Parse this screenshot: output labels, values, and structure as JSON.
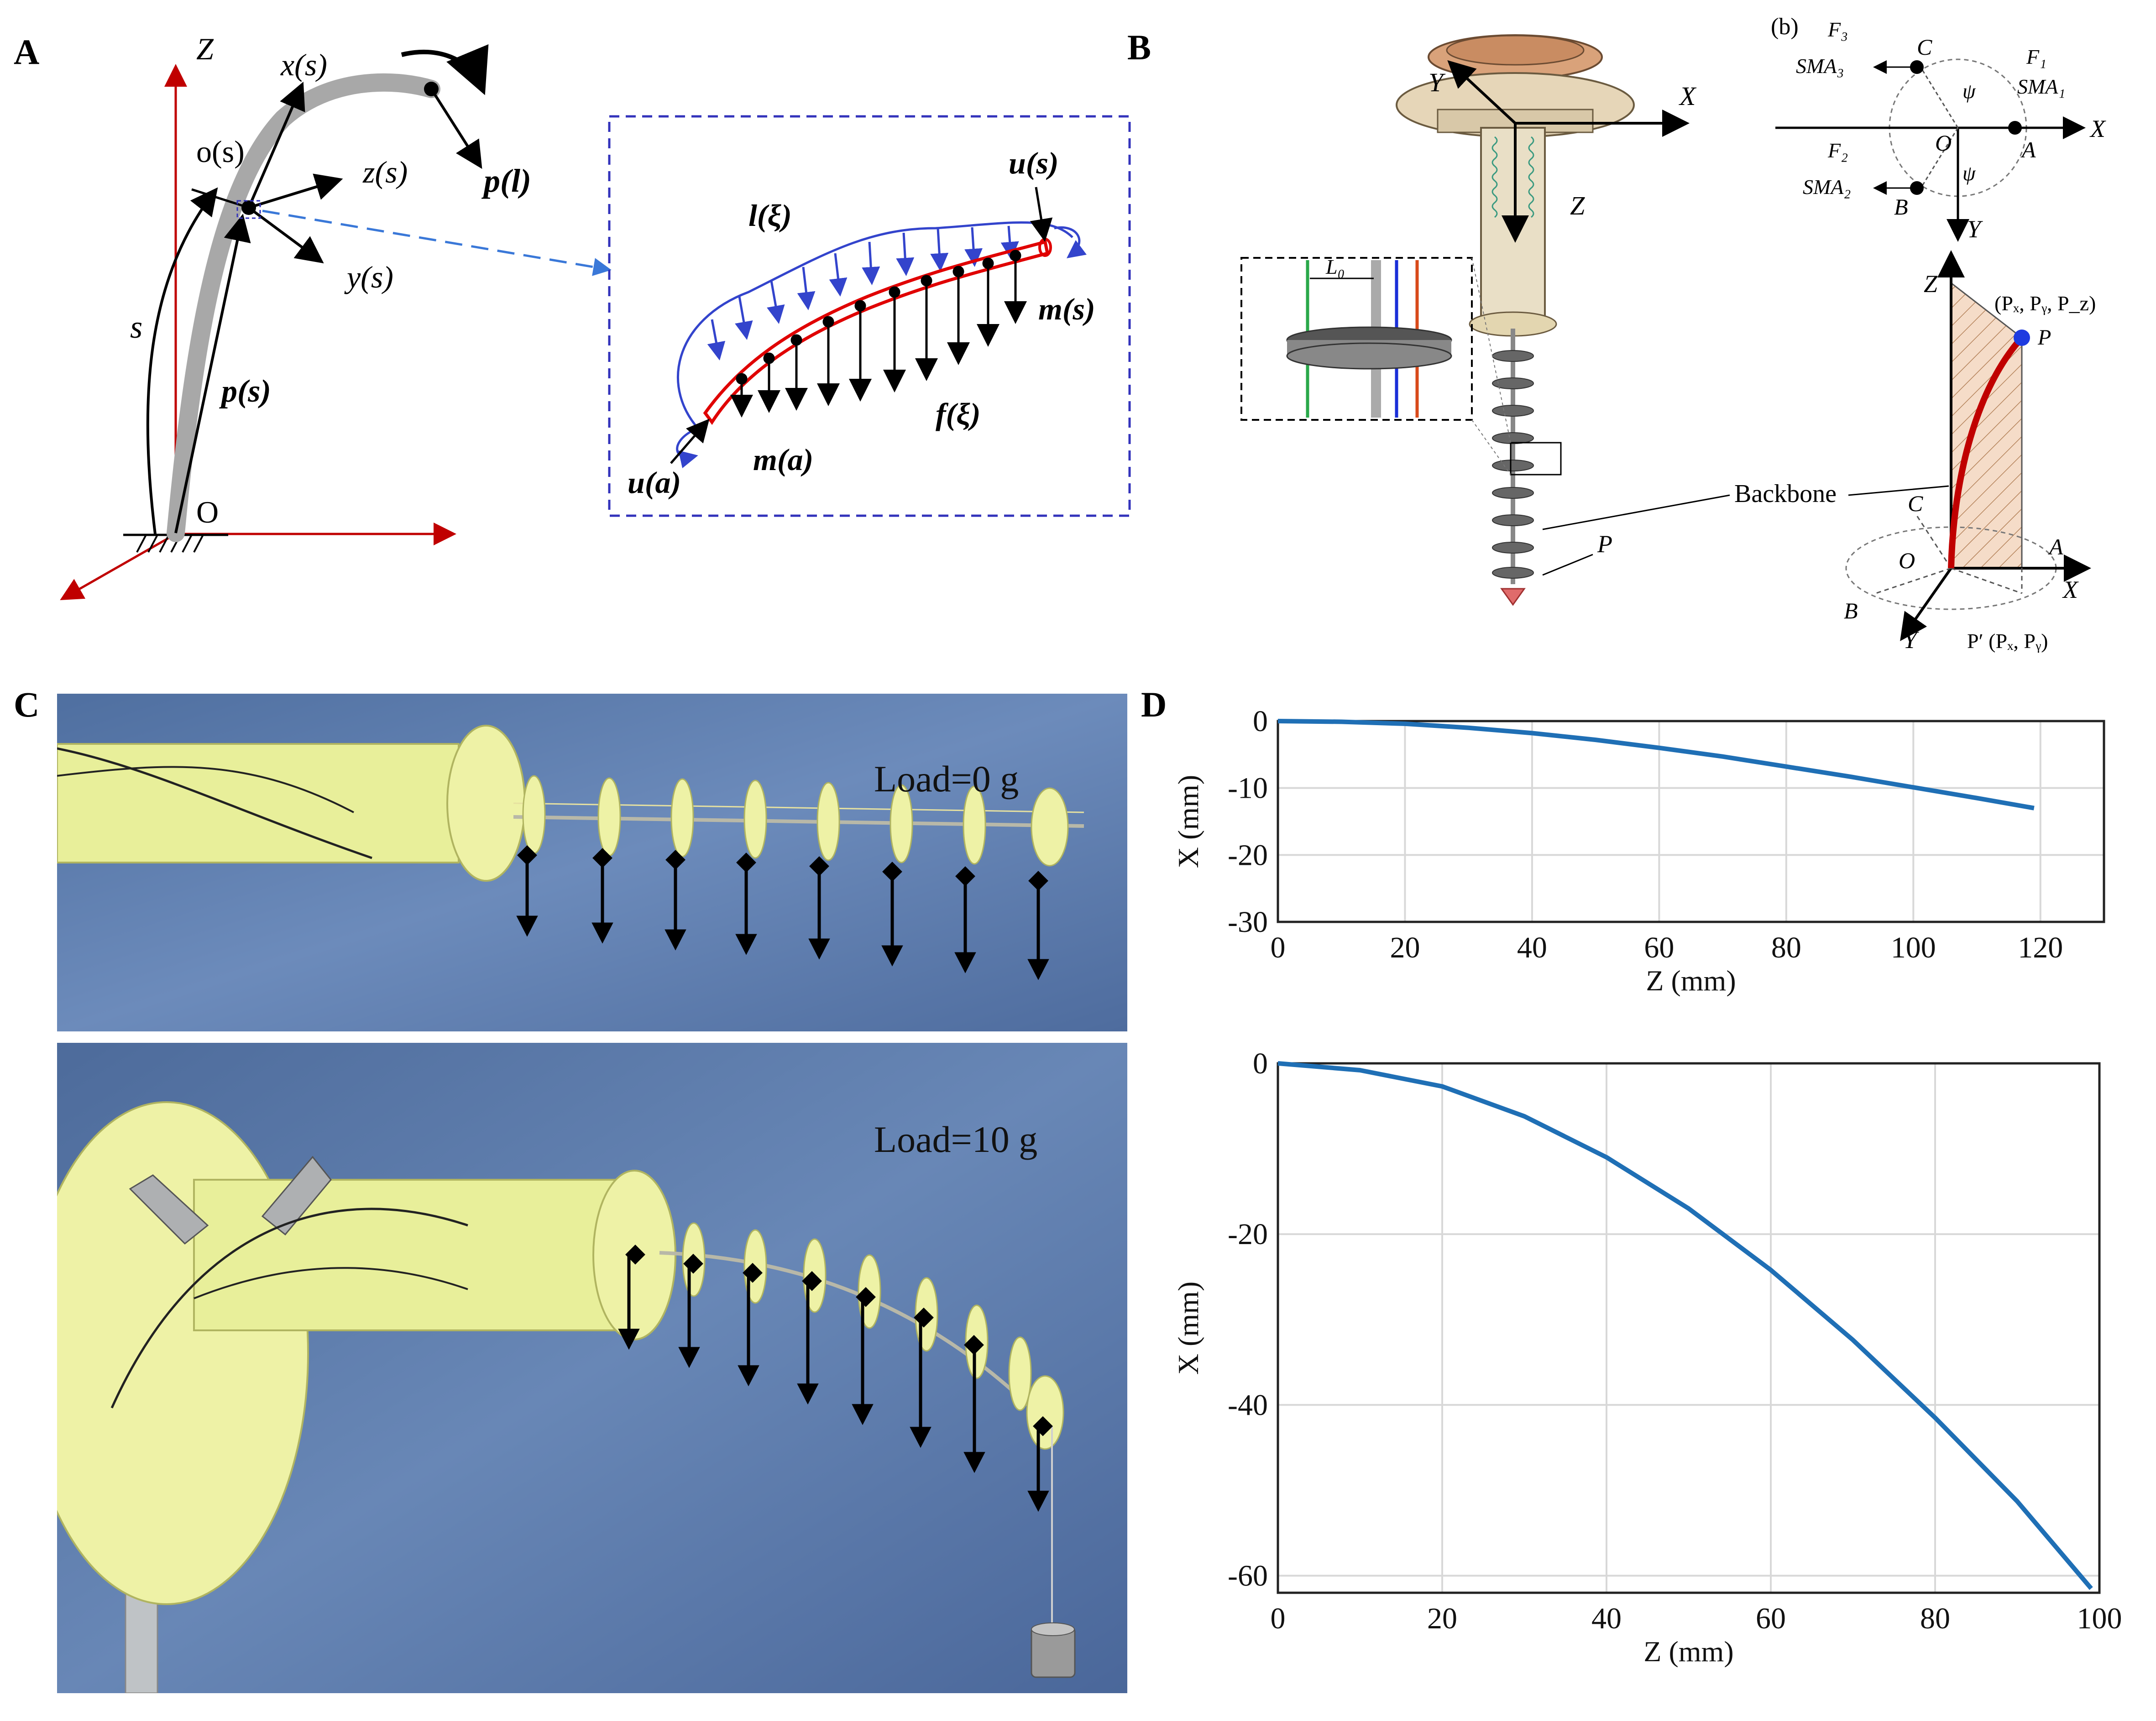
{
  "panels": {
    "A": "A",
    "B": "B",
    "C": "C",
    "D": "D"
  },
  "panelA": {
    "main_labels": {
      "z_axis": "Z",
      "xs": "x(s)",
      "os": "o(s)",
      "zs": "z(s)",
      "ys": "y(s)",
      "s": "s",
      "ps": "p(s)",
      "O": "O",
      "pl": "p(l)"
    },
    "inset_labels": {
      "us": "u(s)",
      "lxi": "l(ξ)",
      "ms": "m(s)",
      "fxi": "f(ξ)",
      "ua": "u(a)",
      "ma": "m(a)"
    },
    "colors": {
      "backbone": "#a8a8a8",
      "axes": "#c00000",
      "rod": "#e00000",
      "distributed_moment": "#3344cc",
      "inset_border": "#3333bb",
      "leader": "#3a78d8"
    }
  },
  "panelB": {
    "labels": {
      "Y": "Y",
      "X": "X",
      "Z": "Z",
      "L0": "L₀",
      "P": "P",
      "backbone": "Backbone"
    },
    "diagram_b": {
      "tag": "(b)",
      "F3": "F₃",
      "SMA3": "SMA₃",
      "C": "C",
      "F1": "F₁",
      "SMA1": "SMA₁",
      "psi1": "ψ",
      "psi2": "ψ",
      "O": "O",
      "A": "A",
      "X": "X",
      "F2": "F₂",
      "SMA2": "SMA₂",
      "B": "B",
      "Y": "Y"
    },
    "diagram_3d": {
      "Z": "Z",
      "P_coord": "(Pₓ, Pᵧ, P_z)",
      "P": "P",
      "C": "C",
      "O": "O",
      "A": "A",
      "B": "B",
      "X": "X",
      "Y": "Y",
      "Pprime": "P′ (Pₓ, Pᵧ)"
    }
  },
  "panelC": {
    "top_label": "Load=0 g",
    "bottom_label": "Load=10 g",
    "background": "#5a78a8",
    "manipulator_color": "#e8ef9a"
  },
  "chart_data": [
    {
      "type": "line",
      "title": "",
      "xlabel": "Z (mm)",
      "ylabel": "X (mm)",
      "xlim": [
        0,
        130
      ],
      "ylim": [
        -30,
        0
      ],
      "xticks": [
        0,
        20,
        40,
        60,
        80,
        100,
        120
      ],
      "yticks": [
        0,
        -10,
        -20,
        -30
      ],
      "grid": true,
      "color": "#1f6fb5",
      "series": [
        {
          "x": [
            0,
            10,
            20,
            30,
            40,
            50,
            60,
            70,
            80,
            90,
            100,
            110,
            119
          ],
          "y": [
            0,
            -0.1,
            -0.4,
            -1.0,
            -1.8,
            -2.8,
            -4.0,
            -5.3,
            -6.8,
            -8.3,
            -9.9,
            -11.5,
            -13.0
          ]
        }
      ]
    },
    {
      "type": "line",
      "title": "",
      "xlabel": "Z (mm)",
      "ylabel": "X (mm)",
      "xlim": [
        0,
        100
      ],
      "ylim": [
        -62,
        0
      ],
      "xticks": [
        0,
        20,
        40,
        60,
        80,
        100
      ],
      "yticks": [
        0,
        -20,
        -40,
        -60
      ],
      "grid": true,
      "color": "#1f6fb5",
      "series": [
        {
          "x": [
            0,
            10,
            20,
            30,
            40,
            50,
            60,
            70,
            80,
            90,
            99
          ],
          "y": [
            0,
            -0.8,
            -2.7,
            -6.2,
            -11.0,
            -17.0,
            -24.2,
            -32.4,
            -41.5,
            -51.3,
            -61.5
          ]
        }
      ]
    }
  ]
}
